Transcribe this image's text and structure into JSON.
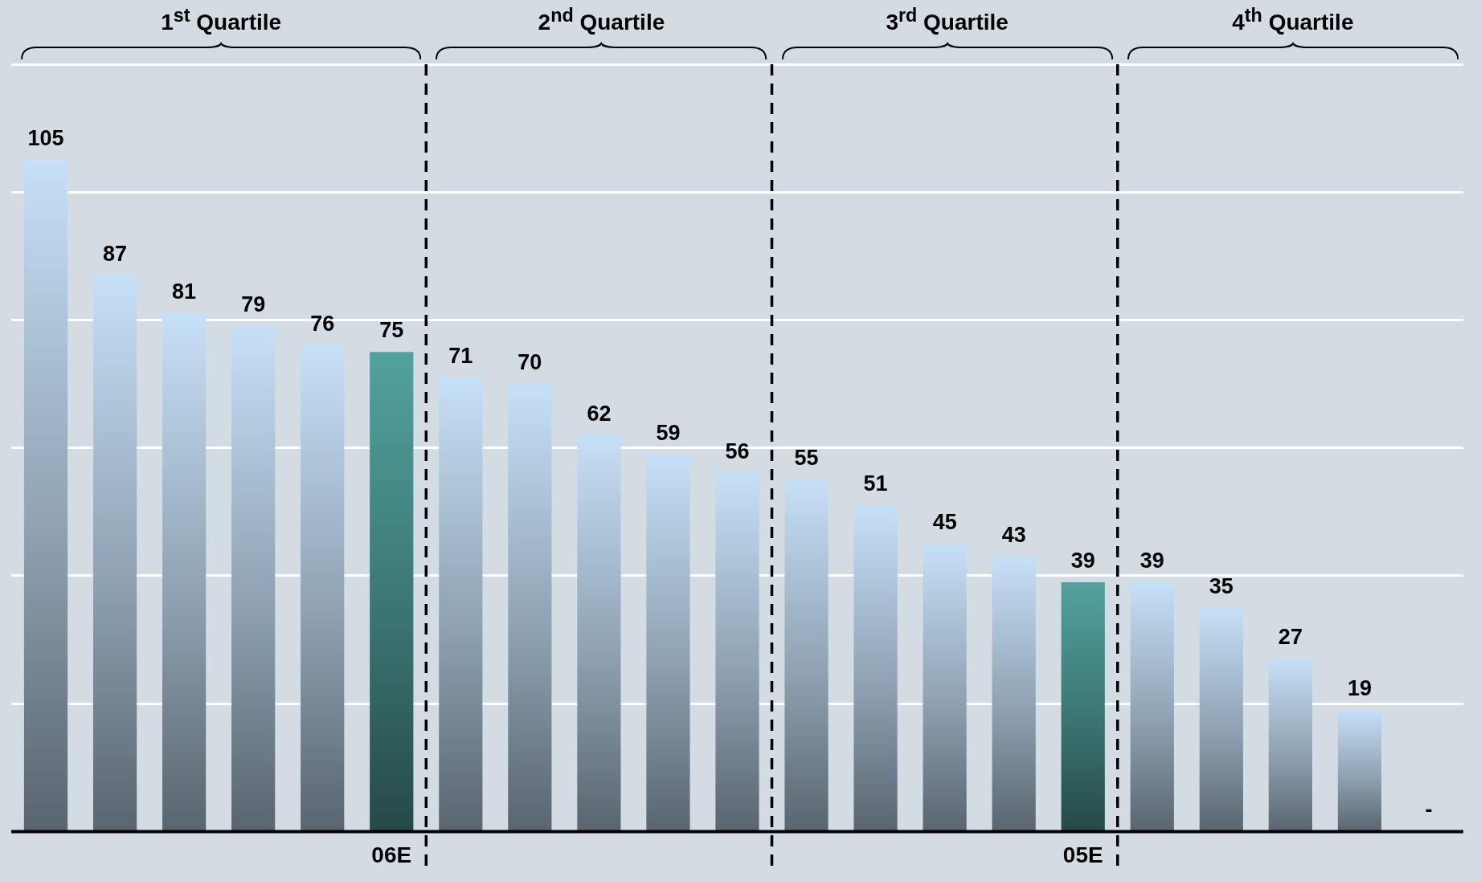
{
  "chart_data": {
    "type": "bar",
    "categories": [
      null,
      null,
      null,
      null,
      null,
      "06E",
      null,
      null,
      null,
      null,
      null,
      null,
      null,
      null,
      null,
      "05E",
      null,
      null,
      null,
      null,
      null
    ],
    "values": [
      105,
      87,
      81,
      79,
      76,
      75,
      71,
      70,
      62,
      59,
      56,
      55,
      51,
      45,
      43,
      39,
      39,
      35,
      27,
      19,
      0
    ],
    "value_labels": [
      "105",
      "87",
      "81",
      "79",
      "76",
      "75",
      "71",
      "70",
      "62",
      "59",
      "56",
      "55",
      "51",
      "45",
      "43",
      "39",
      "39",
      "35",
      "27",
      "19",
      "-"
    ],
    "colors": [
      "#c6e0f7",
      "#c6e0f7",
      "#c6e0f7",
      "#c6e0f7",
      "#c6e0f7",
      "#52a29f",
      "#c6e0f7",
      "#c6e0f7",
      "#c6e0f7",
      "#c6e0f7",
      "#c6e0f7",
      "#c6e0f7",
      "#c6e0f7",
      "#c6e0f7",
      "#c6e0f7",
      "#52a29f",
      "#c6e0f7",
      "#c6e0f7",
      "#c6e0f7",
      "#c6e0f7",
      "#c6e0f7"
    ],
    "ylim": [
      0,
      120
    ],
    "yticks": [
      {
        "value": 0,
        "label": null
      },
      {
        "value": 20,
        "label": null
      },
      {
        "value": 40,
        "label": null
      },
      {
        "value": 60,
        "label": null
      },
      {
        "value": 80,
        "label": null
      },
      {
        "value": 100,
        "label": null
      },
      {
        "value": 120,
        "label": null
      }
    ],
    "grid": "y",
    "tick_labels": "x",
    "legend": false,
    "annotations": [
      "1$^{st}$ Quartile",
      "2$^{nd}$ Quartile",
      "3$^{rd}$ Quartile",
      "4$^{th}$ Quartile"
    ]
  }
}
